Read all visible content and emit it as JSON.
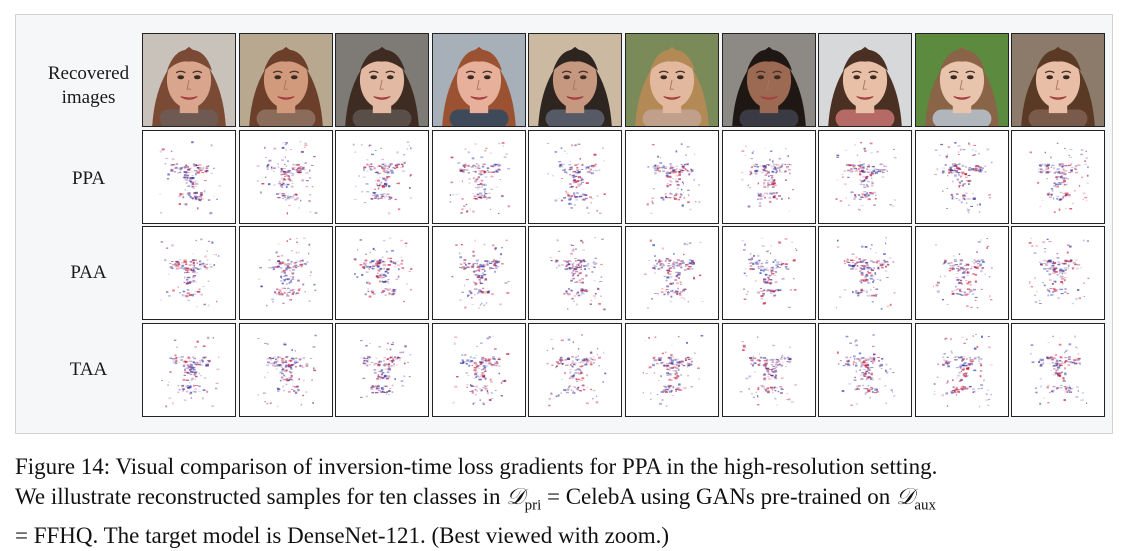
{
  "figure": {
    "row_labels": [
      "Recovered images",
      "PPA",
      "PAA",
      "TAA"
    ],
    "columns": 10,
    "face_palette": [
      {
        "skin": "#d9a58c",
        "hair": "#7a4a34",
        "bg": "#c9c2bb",
        "shirt": "#6e5a52"
      },
      {
        "skin": "#d29a7d",
        "hair": "#6b3f2a",
        "bg": "#b8a890",
        "shirt": "#8b6b5a"
      },
      {
        "skin": "#e2b9a3",
        "hair": "#3e2b22",
        "bg": "#7e7a76",
        "shirt": "#5a4e48"
      },
      {
        "skin": "#e6b09a",
        "hair": "#9a5232",
        "bg": "#a7b0b8",
        "shirt": "#3e4a5a"
      },
      {
        "skin": "#c79880",
        "hair": "#2e2420",
        "bg": "#cbb9a2",
        "shirt": "#555a66"
      },
      {
        "skin": "#e2b89e",
        "hair": "#b38a55",
        "bg": "#7a8a58",
        "shirt": "#c0a08a"
      },
      {
        "skin": "#9c6a52",
        "hair": "#1f1713",
        "bg": "#8d8a86",
        "shirt": "#3a3a44"
      },
      {
        "skin": "#e8c0a8",
        "hair": "#4a3022",
        "bg": "#d6d8da",
        "shirt": "#b66a66"
      },
      {
        "skin": "#e9c4ad",
        "hair": "#8a6446",
        "bg": "#5c8a3e",
        "shirt": "#b0b6bc"
      },
      {
        "skin": "#e8bea6",
        "hair": "#5a3a24",
        "bg": "#8c7a6a",
        "shirt": "#7a5a4a"
      }
    ],
    "gradient_colors": {
      "positive": "#c8102e",
      "negative": "#1f2fa8",
      "mid": "#6a2b7a"
    }
  },
  "caption": {
    "line1": "Figure 14: Visual comparison of inversion-time loss gradients for PPA in the high-resolution setting.",
    "line2_a": "We illustrate reconstructed samples for ten classes in ",
    "d_symbol": "𝒟",
    "pri_sub": "pri",
    "line2_b": " = CelebA using GANs pre-trained on ",
    "aux_sub": "aux",
    "line3": "= FFHQ. The target model is DenseNet-121. (Best viewed with zoom.)"
  }
}
